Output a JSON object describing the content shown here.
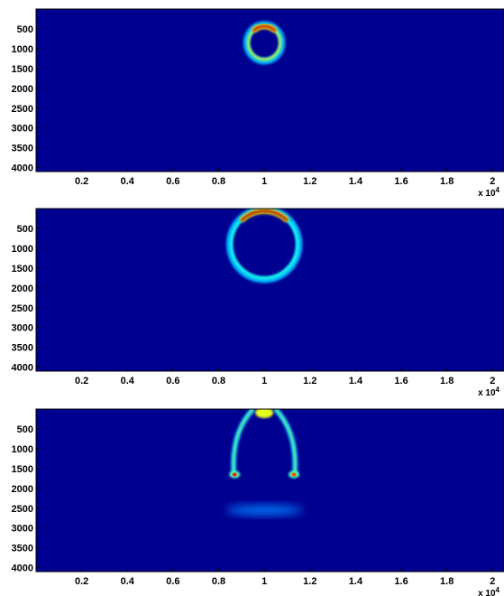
{
  "colors": {
    "background": "#000090",
    "axis": "#000000"
  },
  "colormap": "jet",
  "chart_data": [
    {
      "type": "heatmap",
      "panel": "top",
      "x_ticks": [
        "0.2",
        "0.4",
        "0.6",
        "0.8",
        "1",
        "1.2",
        "1.4",
        "1.6",
        "1.8",
        "2"
      ],
      "x_tick_values": [
        2000,
        4000,
        6000,
        8000,
        10000,
        12000,
        14000,
        16000,
        18000,
        20000
      ],
      "y_ticks": [
        "500",
        "1000",
        "1500",
        "2000",
        "2500",
        "3000",
        "3500",
        "4000"
      ],
      "y_tick_values": [
        500,
        1000,
        1500,
        2000,
        2500,
        3000,
        3500,
        4000
      ],
      "x_multiplier": "x 10",
      "x_multiplier_exp": "4",
      "xlim": [
        0,
        20500
      ],
      "ylim": [
        4100,
        0
      ],
      "features": [
        {
          "shape": "ring",
          "cx": 10000,
          "cy": 850,
          "rx": 700,
          "ry": 420,
          "intensity": 0.55
        },
        {
          "shape": "arc_top",
          "cx": 10000,
          "cy": 850,
          "rx": 700,
          "ry": 420,
          "intensity": 0.95
        }
      ]
    },
    {
      "type": "heatmap",
      "panel": "middle",
      "x_ticks": [
        "0.2",
        "0.4",
        "0.6",
        "0.8",
        "1",
        "1.2",
        "1.4",
        "1.6",
        "1.8",
        "2"
      ],
      "x_tick_values": [
        2000,
        4000,
        6000,
        8000,
        10000,
        12000,
        14000,
        16000,
        18000,
        20000
      ],
      "y_ticks": [
        "500",
        "1000",
        "1500",
        "2000",
        "2500",
        "3000",
        "3500",
        "4000"
      ],
      "y_tick_values": [
        500,
        1000,
        1500,
        2000,
        2500,
        3000,
        3500,
        4000
      ],
      "x_multiplier": "x 10",
      "x_multiplier_exp": "4",
      "xlim": [
        0,
        20500
      ],
      "ylim": [
        4100,
        0
      ],
      "features": [
        {
          "shape": "ring",
          "cx": 10000,
          "cy": 900,
          "rx": 1450,
          "ry": 850,
          "intensity": 0.4
        },
        {
          "shape": "arc_top",
          "cx": 10000,
          "cy": 900,
          "rx": 1450,
          "ry": 850,
          "intensity": 0.98
        }
      ]
    },
    {
      "type": "heatmap",
      "panel": "bottom",
      "x_ticks": [
        "0.2",
        "0.4",
        "0.6",
        "0.8",
        "1",
        "1.2",
        "1.4",
        "1.6",
        "1.8",
        "2"
      ],
      "x_tick_values": [
        2000,
        4000,
        6000,
        8000,
        10000,
        12000,
        14000,
        16000,
        18000,
        20000
      ],
      "y_ticks": [
        "500",
        "1000",
        "1500",
        "2000",
        "2500",
        "3000",
        "3500",
        "4000"
      ],
      "y_tick_values": [
        500,
        1000,
        1500,
        2000,
        2500,
        3000,
        3500,
        4000
      ],
      "x_multiplier": "x 10",
      "x_multiplier_exp": "4",
      "xlim": [
        0,
        20500
      ],
      "ylim": [
        4100,
        0
      ],
      "features": [
        {
          "shape": "arc_left",
          "cx": 10000,
          "cy": 900,
          "rx": 1400,
          "ry": 1000,
          "intensity": 0.5
        },
        {
          "shape": "hot_spot",
          "cx": 8700,
          "cy": 1650,
          "intensity": 0.85
        },
        {
          "shape": "hot_spot",
          "cx": 11300,
          "cy": 1650,
          "intensity": 0.8
        },
        {
          "shape": "faint_band",
          "cx": 10000,
          "cy": 2550,
          "intensity": 0.2
        }
      ]
    }
  ]
}
